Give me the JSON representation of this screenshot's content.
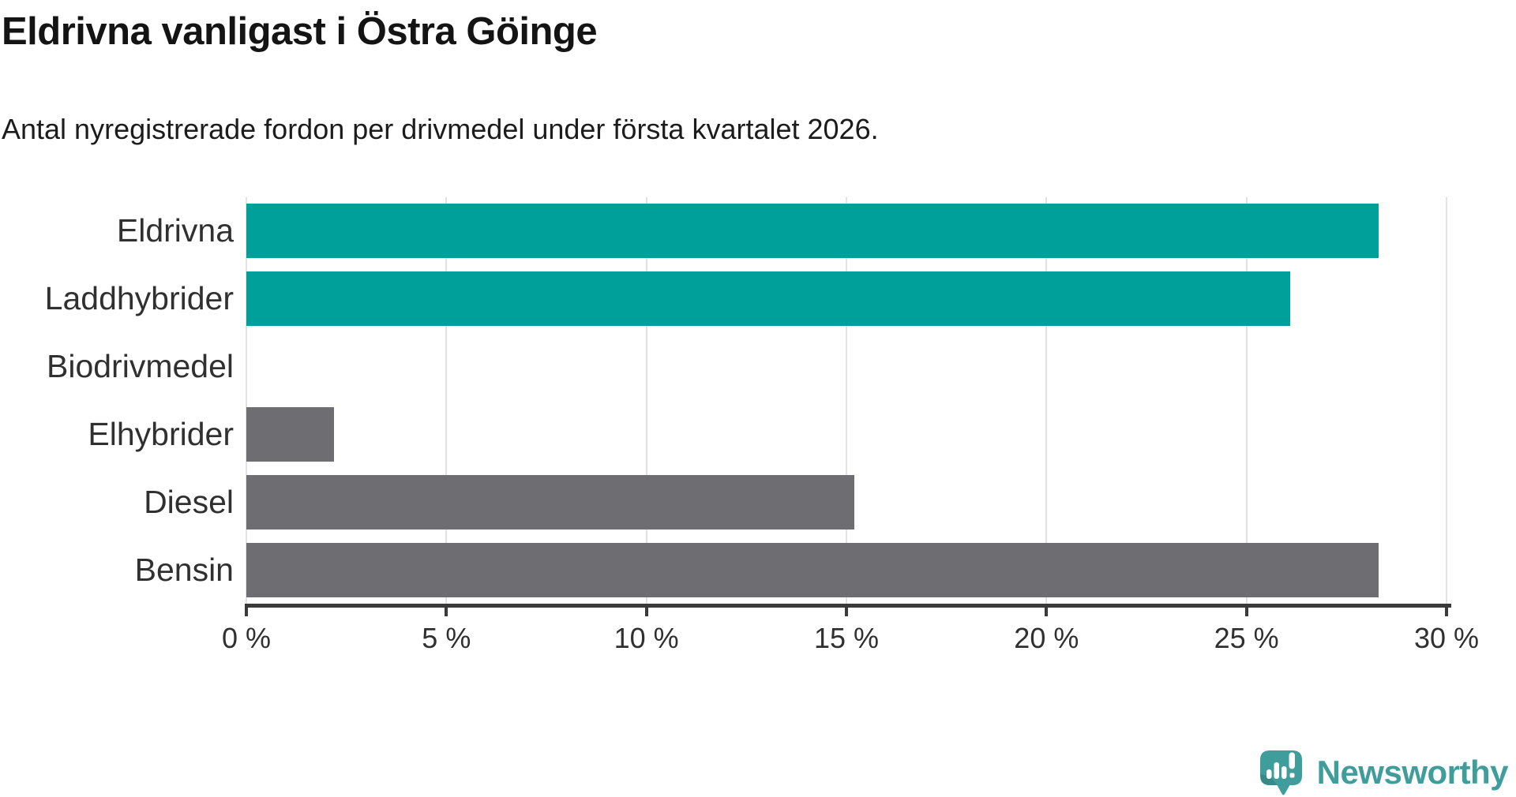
{
  "header": {
    "title": "Eldrivna vanligast i Östra Göinge",
    "subtitle": "Antal nyregistrerade fordon per drivmedel under första kvartalet 2026."
  },
  "chart_data": {
    "type": "bar",
    "orientation": "horizontal",
    "title": "Eldrivna vanligast i Östra Göinge",
    "subtitle": "Antal nyregistrerade fordon per drivmedel under första kvartalet 2026.",
    "categories": [
      "Eldrivna",
      "Laddhybrider",
      "Biodrivmedel",
      "Elhybrider",
      "Diesel",
      "Bensin"
    ],
    "values": [
      28.3,
      26.1,
      0,
      2.2,
      15.2,
      28.3
    ],
    "unit": "%",
    "xlim": [
      0,
      30
    ],
    "x_ticks": [
      0,
      5,
      10,
      15,
      20,
      25,
      30
    ],
    "x_tick_labels": [
      "0 %",
      "5 %",
      "10 %",
      "15 %",
      "20 %",
      "25 %",
      "30 %"
    ],
    "series_colors": [
      "#00a09a",
      "#00a09a",
      "#00a09a",
      "#6e6d72",
      "#6e6d72",
      "#6e6d72"
    ],
    "grid": "vertical",
    "legend": "none",
    "xlabel": "",
    "ylabel": ""
  },
  "colors": {
    "accent_teal": "#00a09a",
    "neutral_gray": "#6e6d72",
    "axis": "#3a3a3a",
    "gridline": "#e1e1e1",
    "logo_teal": "#3f9e9b",
    "title_text": "#141414",
    "label_text": "#303030"
  },
  "footer": {
    "brand": "Newsworthy"
  }
}
